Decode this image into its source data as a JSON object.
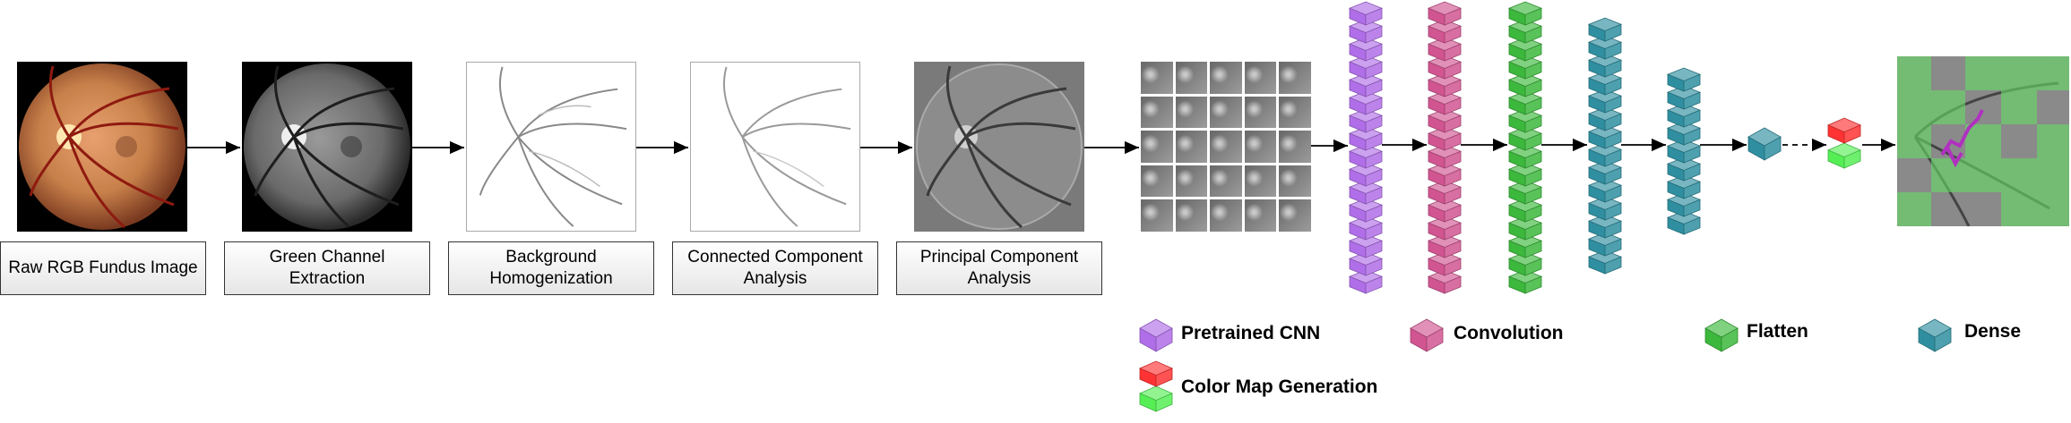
{
  "pipeline": {
    "stages": [
      {
        "label": "Raw RGB Fundus Image"
      },
      {
        "label": "Green Channel\nExtraction"
      },
      {
        "label": "Background\nHomogenization"
      },
      {
        "label": "Connected Component\nAnalysis"
      },
      {
        "label": "Principal Component\nAnalysis"
      }
    ]
  },
  "legend": {
    "pretrained_cnn": "Pretrained CNN",
    "convolution": "Convolution",
    "flatten": "Flatten",
    "dense": "Dense",
    "color_map": "Color Map Generation"
  },
  "colors": {
    "pretrained_cnn": "#b06ee8",
    "convolution": "#d15591",
    "flatten": "#3cb83c",
    "dense": "#2f8fa0",
    "map_top": "#ff3333",
    "map_bottom": "#55ee55"
  }
}
